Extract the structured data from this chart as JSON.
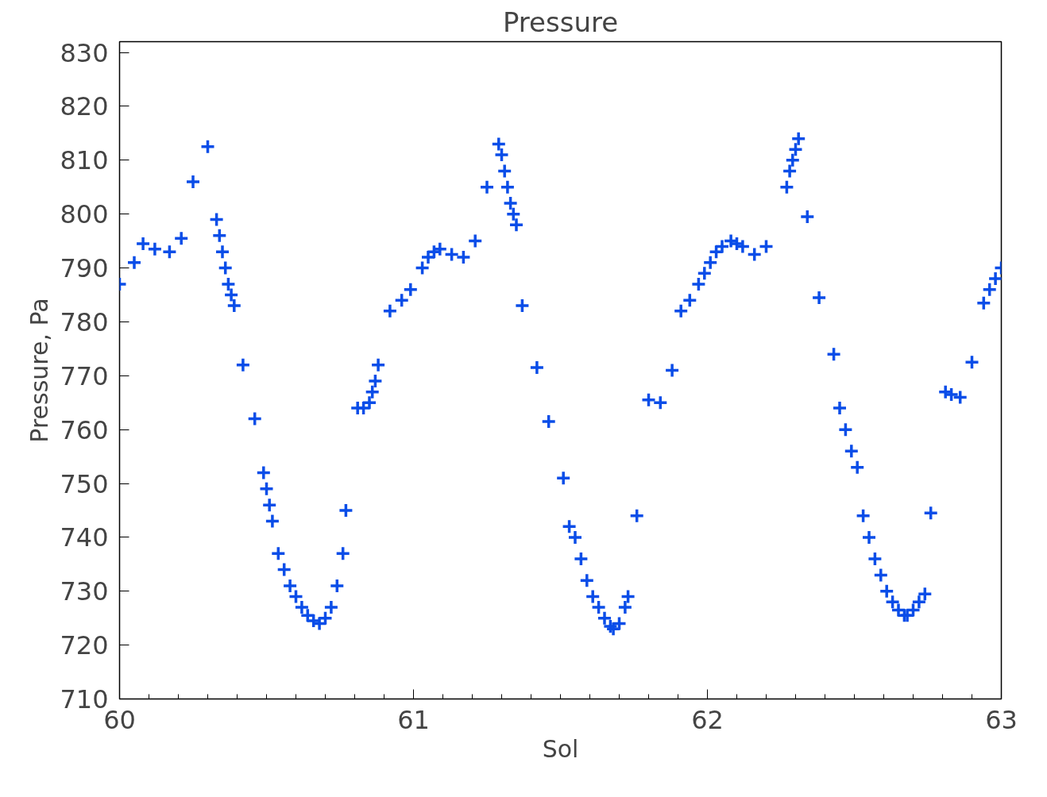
{
  "chart_data": {
    "type": "scatter",
    "title": "Pressure",
    "xlabel": "Sol",
    "ylabel": "Pressure, Pa",
    "xlim": [
      60,
      63
    ],
    "ylim": [
      710,
      832
    ],
    "xticks": [
      60,
      {
        "value": 60.1,
        "label": null
      },
      {
        "value": 60.2,
        "label": null
      },
      {
        "value": 60.3,
        "label": null
      },
      {
        "value": 60.4,
        "label": null
      },
      {
        "value": 60.5,
        "label": null
      },
      {
        "value": 60.6,
        "label": null
      },
      {
        "value": 60.7,
        "label": null
      },
      {
        "value": 60.8,
        "label": null
      },
      {
        "value": 60.9,
        "label": null
      },
      61,
      {
        "value": 61.1,
        "label": null
      },
      {
        "value": 61.2,
        "label": null
      },
      {
        "value": 61.3,
        "label": null
      },
      {
        "value": 61.4,
        "label": null
      },
      {
        "value": 61.5,
        "label": null
      },
      {
        "value": 61.6,
        "label": null
      },
      {
        "value": 61.7,
        "label": null
      },
      {
        "value": 61.8,
        "label": null
      },
      {
        "value": 61.9,
        "label": null
      },
      62,
      {
        "value": 62.1,
        "label": null
      },
      {
        "value": 62.2,
        "label": null
      },
      {
        "value": 62.3,
        "label": null
      },
      {
        "value": 62.4,
        "label": null
      },
      {
        "value": 62.5,
        "label": null
      },
      {
        "value": 62.6,
        "label": null
      },
      {
        "value": 62.7,
        "label": null
      },
      {
        "value": 62.8,
        "label": null
      },
      {
        "value": 62.9,
        "label": null
      },
      63
    ],
    "yticks": [
      710,
      720,
      730,
      740,
      750,
      760,
      770,
      780,
      790,
      800,
      810,
      820,
      830
    ],
    "grid": false,
    "marker": "cross",
    "series": [
      {
        "color": "#0a4de8",
        "x": [
          60.0,
          60.05,
          60.08,
          60.12,
          60.17,
          60.21,
          60.25,
          60.3,
          60.33,
          60.34,
          60.35,
          60.36,
          60.37,
          60.38,
          60.39,
          60.42,
          60.46,
          60.49,
          60.5,
          60.51,
          60.52,
          60.54,
          60.56,
          60.58,
          60.6,
          60.62,
          60.64,
          60.66,
          60.68,
          60.7,
          60.72,
          60.74,
          60.76,
          60.77,
          60.81,
          60.83,
          60.85,
          60.86,
          60.87,
          60.88,
          60.92,
          60.96,
          60.99,
          61.03,
          61.05,
          61.07,
          61.09,
          61.13,
          61.17,
          61.21,
          61.25,
          61.29,
          61.3,
          61.31,
          61.32,
          61.33,
          61.34,
          61.35,
          61.37,
          61.42,
          61.46,
          61.51,
          61.53,
          61.55,
          61.57,
          61.59,
          61.61,
          61.63,
          61.65,
          61.67,
          61.68,
          61.7,
          61.72,
          61.73,
          61.76,
          61.8,
          61.84,
          61.88,
          61.91,
          61.94,
          61.97,
          61.99,
          62.01,
          62.03,
          62.05,
          62.08,
          62.1,
          62.12,
          62.16,
          62.2,
          62.27,
          62.28,
          62.29,
          62.3,
          62.31,
          62.34,
          62.38,
          62.43,
          62.45,
          62.47,
          62.49,
          62.51,
          62.53,
          62.55,
          62.57,
          62.59,
          62.61,
          62.63,
          62.65,
          62.67,
          62.68,
          62.7,
          62.72,
          62.74,
          62.76,
          62.81,
          62.83,
          62.86,
          62.9,
          62.94,
          62.96,
          62.98,
          63.0
        ],
        "values": [
          787,
          791,
          794.5,
          793.5,
          793,
          795.5,
          806,
          812.5,
          799,
          796,
          793,
          790,
          787,
          785,
          783,
          772,
          762,
          752,
          749,
          746,
          743,
          737,
          734,
          731,
          729,
          727,
          725.5,
          724.5,
          724,
          725,
          727,
          731,
          737,
          745,
          764,
          764,
          765,
          767,
          769,
          772,
          782,
          784,
          786,
          790,
          792,
          793,
          793.5,
          792.5,
          792,
          795,
          805,
          813,
          811,
          808,
          805,
          802,
          800,
          798,
          783,
          771.5,
          761.5,
          751,
          742,
          740,
          736,
          732,
          729,
          727,
          725,
          723.5,
          723,
          724,
          727,
          729,
          744,
          765.5,
          765,
          771,
          782,
          784,
          787,
          789,
          791,
          793,
          794,
          795,
          794.5,
          794,
          792.5,
          794,
          805,
          808,
          810,
          812,
          814,
          799.5,
          784.5,
          774,
          764,
          760,
          756,
          753,
          744,
          740,
          736,
          733,
          730,
          728,
          726.5,
          725.5,
          725.5,
          726.5,
          728,
          729.5,
          744.5,
          767,
          766.5,
          766,
          772.5,
          783.5,
          786,
          788,
          790
        ]
      }
    ]
  }
}
